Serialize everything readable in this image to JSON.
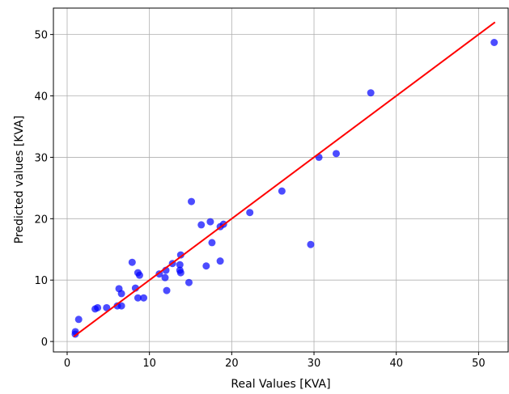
{
  "chart_data": {
    "type": "scatter",
    "xlabel": "Real Values [KVA]",
    "ylabel": "Predicted values [KVA]",
    "x": [
      0.98,
      1.0,
      1.4,
      3.4,
      3.7,
      4.8,
      6.1,
      6.6,
      6.3,
      6.6,
      7.9,
      8.3,
      8.6,
      8.8,
      8.6,
      9.3,
      11.2,
      11.9,
      12.0,
      12.1,
      12.8,
      13.7,
      13.8,
      13.7,
      13.8,
      14.8,
      15.1,
      16.3,
      16.9,
      17.4,
      17.6,
      18.6,
      19.0,
      18.6,
      22.2,
      26.1,
      29.6,
      30.6,
      32.7,
      36.9,
      51.9
    ],
    "y": [
      1.2,
      1.6,
      3.6,
      5.3,
      5.5,
      5.5,
      5.8,
      5.8,
      8.6,
      7.8,
      12.9,
      8.7,
      11.2,
      10.8,
      7.1,
      7.1,
      11.0,
      10.4,
      11.6,
      8.3,
      12.7,
      12.5,
      14.1,
      11.6,
      11.2,
      9.6,
      22.8,
      19.0,
      12.3,
      19.5,
      16.1,
      18.7,
      19.1,
      13.1,
      21.0,
      24.5,
      15.8,
      30.0,
      30.6,
      40.5,
      48.7
    ],
    "color": "#0000ff",
    "line": {
      "x": [
        0.8,
        52
      ],
      "y": [
        0.8,
        52
      ],
      "color": "#ff0000"
    },
    "xlim": [
      -1.67,
      53.6
    ],
    "ylim": [
      -1.7,
      54.3
    ],
    "xticks": [
      0,
      10,
      20,
      30,
      40,
      50
    ],
    "yticks": [
      0,
      10,
      20,
      30,
      40,
      50
    ],
    "grid": true
  }
}
